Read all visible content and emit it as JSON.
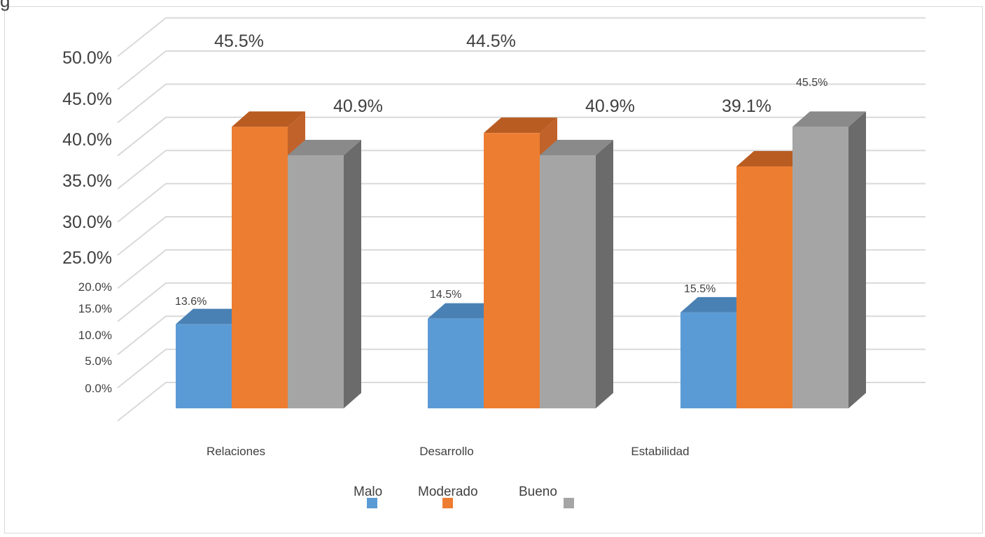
{
  "top_fragment": "g",
  "colors": {
    "Malo": "#5b9bd5",
    "Malo_top": "#4a81b5",
    "Malo_side": "#4276a6",
    "Moderado": "#ed7d31",
    "Moderado_top": "#b85c22",
    "Moderado_side": "#c1622a",
    "Bueno": "#a5a5a5",
    "Bueno_top": "#8a8a8a",
    "Bueno_side": "#6b6b6b",
    "grid": "#d9d9d9"
  },
  "chart_data": {
    "type": "bar",
    "style": "3d-clustered-column",
    "categories": [
      "Relaciones",
      "Desarrollo",
      "Estabilidad"
    ],
    "series": [
      {
        "name": "Malo",
        "values": [
          13.6,
          14.5,
          15.5
        ]
      },
      {
        "name": "Moderado",
        "values": [
          45.5,
          44.5,
          39.1
        ]
      },
      {
        "name": "Bueno",
        "values": [
          40.9,
          40.9,
          45.5
        ]
      }
    ],
    "data_labels": [
      [
        "13.6%",
        "45.5%",
        "40.9%"
      ],
      [
        "14.5%",
        "44.5%",
        "40.9%"
      ],
      [
        "15.5%",
        "39.1%",
        "45.5%"
      ]
    ],
    "yticks": [
      "0.0%",
      "5.0%",
      "10.0%",
      "15.0%",
      "20.0%",
      "25.0%",
      "30.0%",
      "35.0%",
      "40.0%",
      "45.0%",
      "50.0%"
    ],
    "ylim": [
      0,
      50
    ],
    "title": "",
    "xlabel": "",
    "ylabel": "",
    "grid": true,
    "legend": "bottom"
  }
}
